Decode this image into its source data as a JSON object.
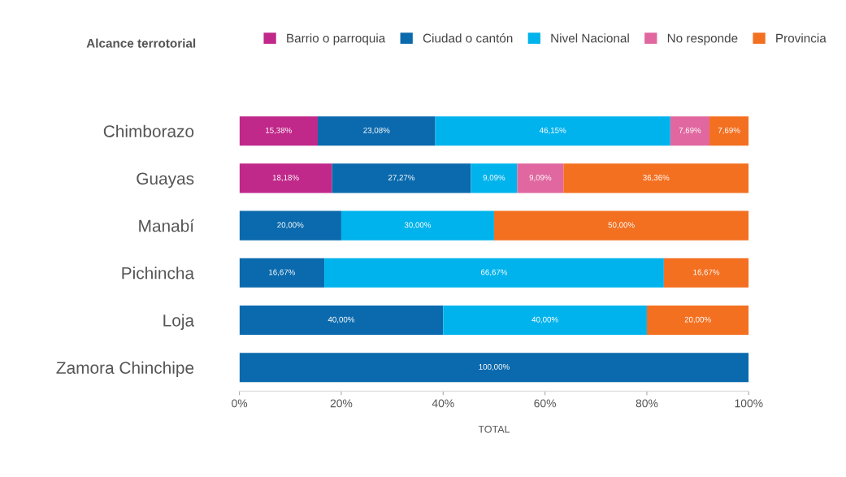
{
  "chart_data": {
    "type": "bar",
    "orientation": "horizontal",
    "stacked": true,
    "legend": "top",
    "legend_title": "Alcance terrotorial",
    "xlabel": "TOTAL",
    "grid": false,
    "categories": [
      "Chimborazo",
      "Guayas",
      "Manabí",
      "Pichincha",
      "Loja",
      "Zamora Chinchipe"
    ],
    "xlim": [
      0,
      100
    ],
    "xticks": [
      {
        "value": 0,
        "label": "0%"
      },
      {
        "value": 20,
        "label": "20%"
      },
      {
        "value": 40,
        "label": "40%"
      },
      {
        "value": 60,
        "label": "60%"
      },
      {
        "value": 80,
        "label": "80%"
      },
      {
        "value": 100,
        "label": "100%"
      }
    ],
    "series": [
      {
        "name": "Barrio o parroquia",
        "color": "#c0288a",
        "values": [
          15.38,
          18.18,
          null,
          null,
          null,
          null
        ],
        "value_labels": [
          "15,38%",
          "18,18%",
          null,
          null,
          null,
          null
        ]
      },
      {
        "name": "Ciudad o cantón",
        "color": "#0b6aad",
        "values": [
          23.08,
          27.27,
          20,
          16.67,
          40,
          100
        ],
        "value_labels": [
          "23,08%",
          "27,27%",
          "20,00%",
          "16,67%",
          "40,00%",
          "100,00%"
        ]
      },
      {
        "name": "Nivel Nacional",
        "color": "#00b3ec",
        "values": [
          46.15,
          9.09,
          30,
          66.67,
          40,
          null
        ],
        "value_labels": [
          "46,15%",
          "9,09%",
          "30,00%",
          "66,67%",
          "40,00%",
          null
        ]
      },
      {
        "name": "No responde",
        "color": "#e0679f",
        "values": [
          7.69,
          9.09,
          null,
          null,
          null,
          null
        ],
        "value_labels": [
          "7,69%",
          "9,09%",
          null,
          null,
          null,
          null
        ]
      },
      {
        "name": "Provincia",
        "color": "#f37021",
        "values": [
          7.69,
          36.36,
          50,
          16.67,
          20,
          null
        ],
        "value_labels": [
          "7,69%",
          "36,36%",
          "50,00%",
          "16,67%",
          "20,00%",
          null
        ]
      }
    ]
  }
}
